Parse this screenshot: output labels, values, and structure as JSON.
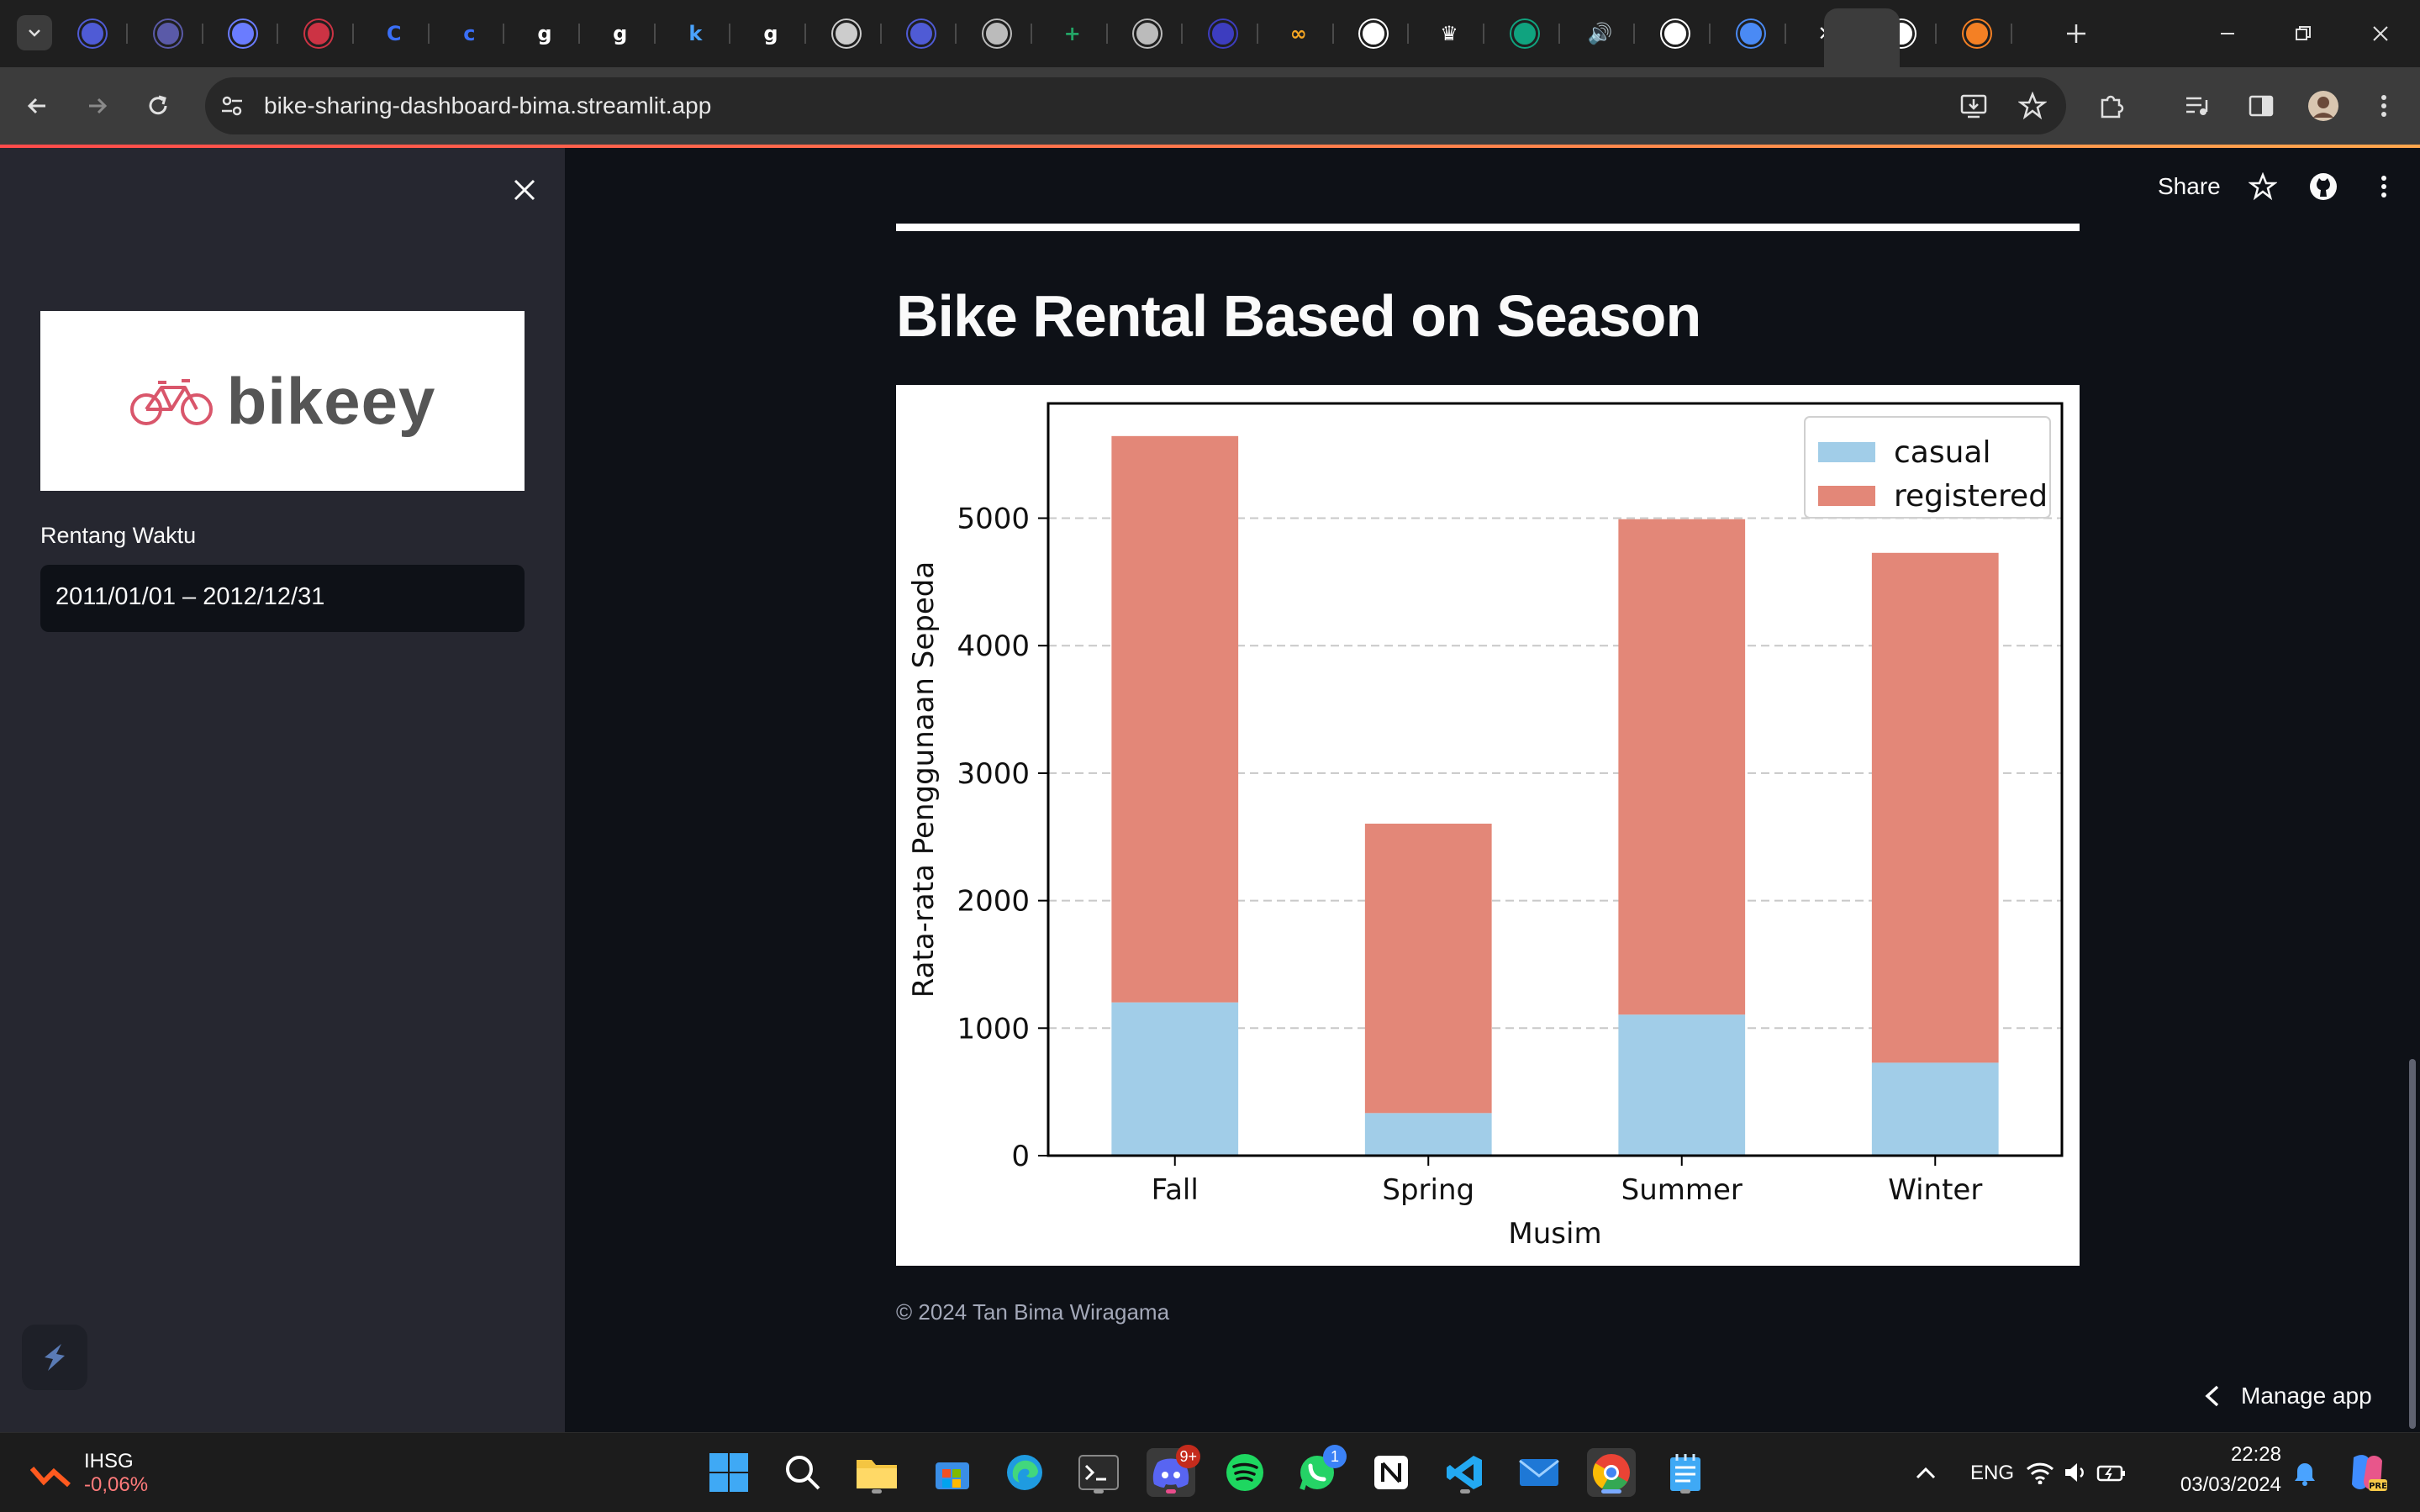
{
  "browser": {
    "url": "bike-sharing-dashboard-bima.streamlit.app",
    "tabs": [
      {
        "icon": "university-icon",
        "color": "#4f5bd5"
      },
      {
        "icon": "banner-icon",
        "color": "#5a5aa8"
      },
      {
        "icon": "circle-c-icon",
        "color": "#6a7cff"
      },
      {
        "icon": "no-entry-icon",
        "color": "#cc3344"
      },
      {
        "icon": "letter-c-icon",
        "color": "#3a6ff7"
      },
      {
        "icon": "letter-c-outline-icon",
        "color": "#3a6ff7"
      },
      {
        "icon": "letter-g-icon",
        "color": "#ffffff"
      },
      {
        "icon": "letter-g-icon",
        "color": "#ffffff"
      },
      {
        "icon": "letter-k-icon",
        "color": "#4aa3ff"
      },
      {
        "icon": "letter-g-icon",
        "color": "#ffffff"
      },
      {
        "icon": "portrait-icon",
        "color": "#cccccc"
      },
      {
        "icon": "university-icon",
        "color": "#4f5bd5"
      },
      {
        "icon": "globe-icon",
        "color": "#bbbbbb"
      },
      {
        "icon": "plus-square-icon",
        "color": "#23a566"
      },
      {
        "icon": "globe-icon",
        "color": "#bbbbbb"
      },
      {
        "icon": "crest-icon",
        "color": "#3d3dbf"
      },
      {
        "icon": "infinity-icon",
        "color": "#f5a623"
      },
      {
        "icon": "github-icon",
        "color": "#ffffff"
      },
      {
        "icon": "crown-icon",
        "color": "#ffffff"
      },
      {
        "icon": "openai-icon",
        "color": "#10a37f"
      },
      {
        "icon": "speaker-icon",
        "color": "#ffffff"
      },
      {
        "icon": "github-icon",
        "color": "#ffffff"
      },
      {
        "icon": "translate-icon",
        "color": "#4a8af4"
      },
      {
        "icon": "close-icon",
        "color": "#ffffff"
      },
      {
        "icon": "github-icon",
        "color": "#ffffff"
      },
      {
        "icon": "stack-icon",
        "color": "#f48024"
      }
    ]
  },
  "sidebar": {
    "logo_text": "bikeey",
    "date_label": "Rentang Waktu",
    "date_value": "2011/01/01 – 2012/12/31"
  },
  "header": {
    "share_label": "Share"
  },
  "main": {
    "title": "Bike Rental Based on Season",
    "footer": "© 2024 Tan Bima Wiragama",
    "manage_app": "Manage app"
  },
  "chart_data": {
    "type": "bar",
    "stacked": true,
    "categories": [
      "Fall",
      "Spring",
      "Summer",
      "Winter"
    ],
    "series": [
      {
        "name": "casual",
        "values": [
          1202,
          334,
          1106,
          729
        ],
        "color": "#a1cde8"
      },
      {
        "name": "registered",
        "values": [
          4442,
          2270,
          3886,
          3999
        ],
        "color": "#e38778"
      }
    ],
    "xlabel": "Musim",
    "ylabel": "Rata-rata Penggunaan Sepeda",
    "yticks": [
      0,
      1000,
      2000,
      3000,
      4000,
      5000
    ],
    "ylim": [
      0,
      5900
    ],
    "grid": "horizontal dashed",
    "legend": "top-right"
  },
  "taskbar": {
    "ticker_name": "IHSG",
    "ticker_value": "-0,06%",
    "discord_badge": "9+",
    "whatsapp_badge": "1",
    "language": "ENG",
    "time": "22:28",
    "date": "03/03/2024"
  }
}
